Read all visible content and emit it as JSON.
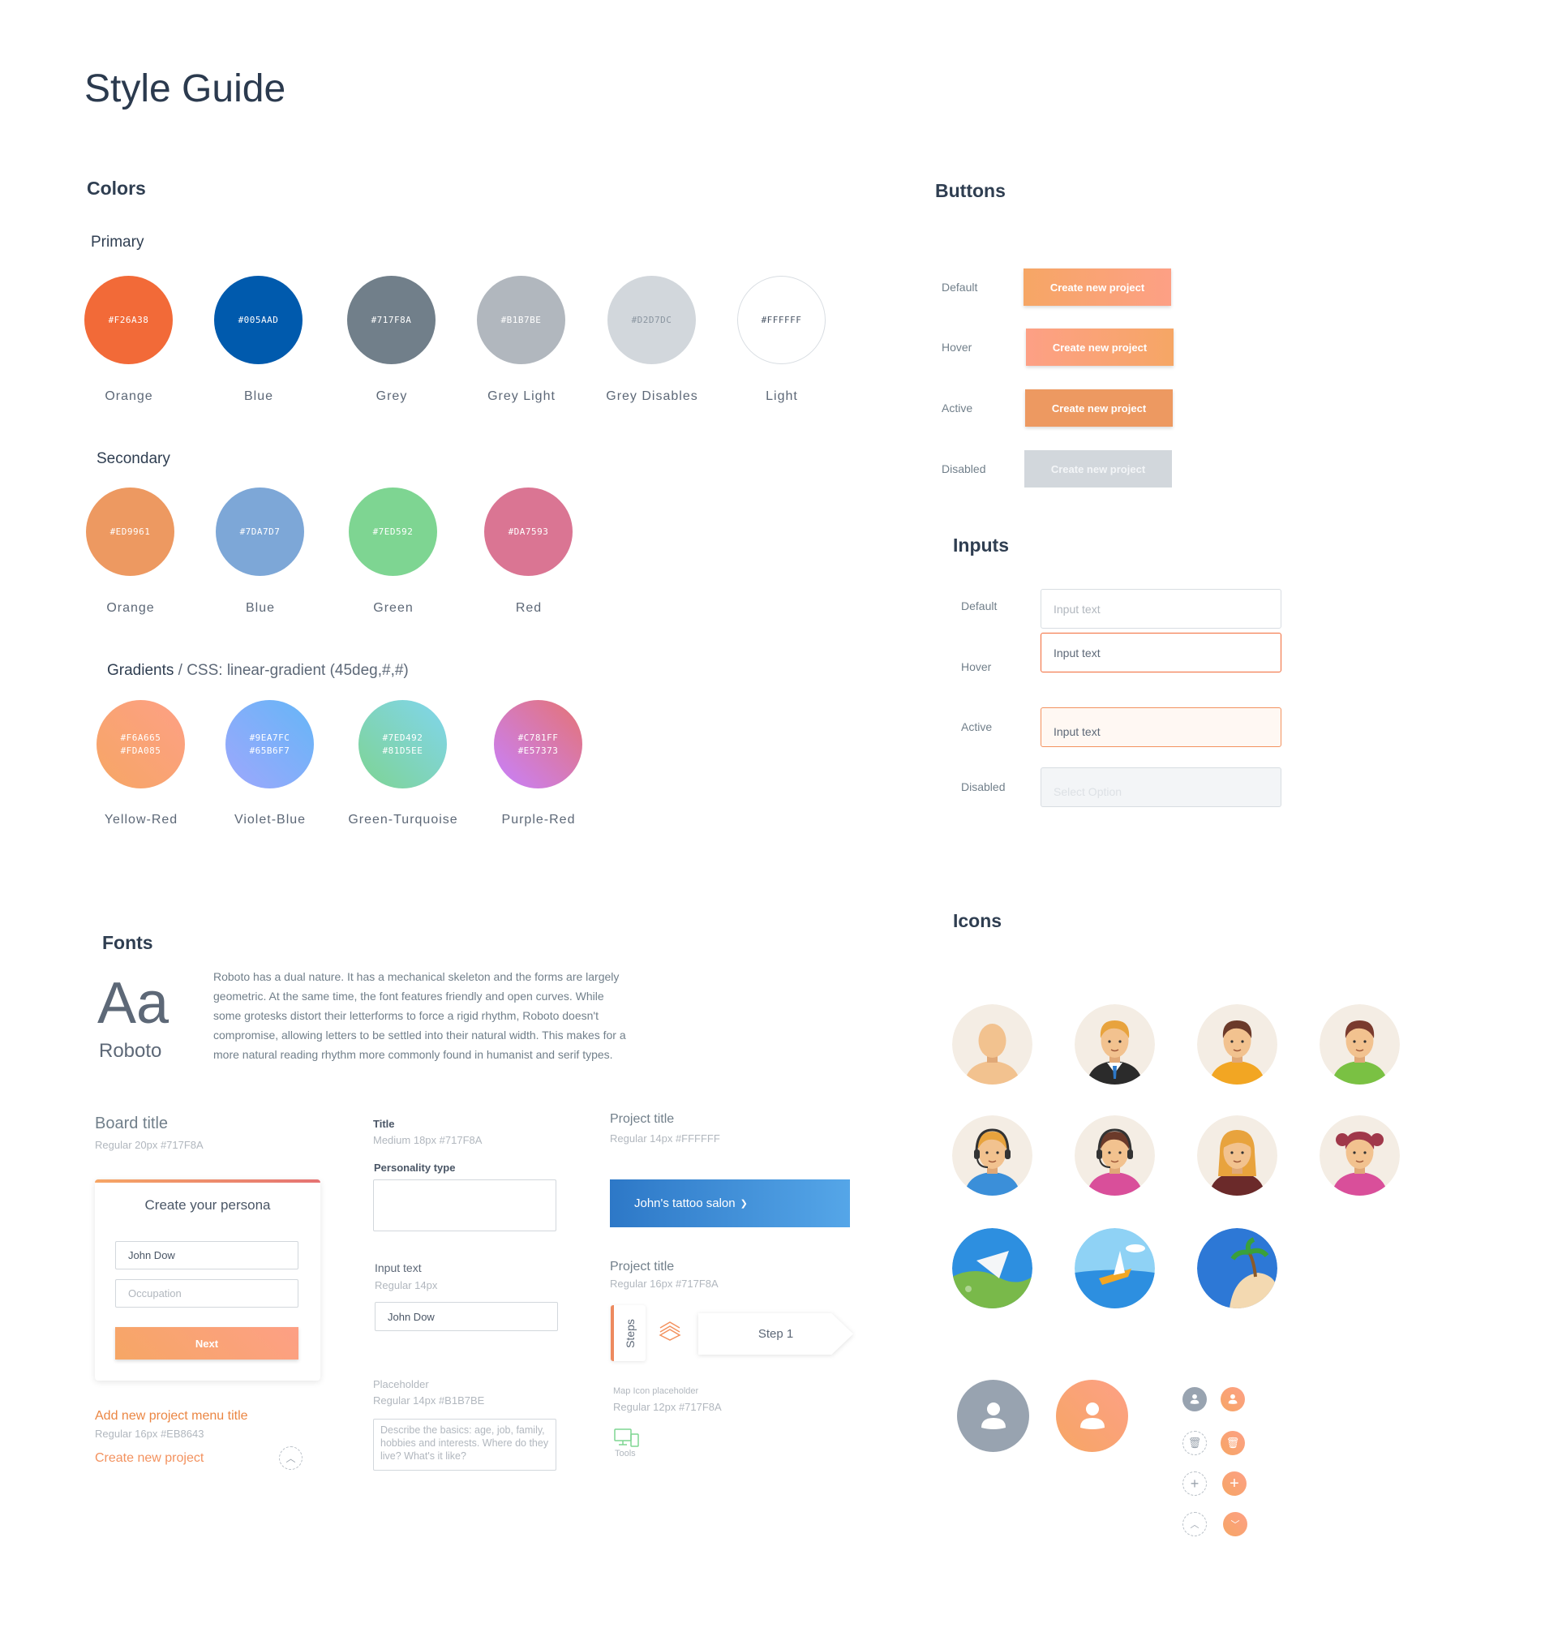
{
  "title": "Style Guide",
  "colors": {
    "heading": "Colors",
    "primary_heading": "Primary",
    "primary": [
      {
        "hex": "#F26A38",
        "name": "Orange"
      },
      {
        "hex": "#005AAD",
        "name": "Blue"
      },
      {
        "hex": "#717F8A",
        "name": "Grey"
      },
      {
        "hex": "#B1B7BE",
        "name": "Grey Light"
      },
      {
        "hex": "#D2D7DC",
        "name": "Grey Disables"
      },
      {
        "hex": "#FFFFFF",
        "name": "Light"
      }
    ],
    "secondary_heading": "Secondary",
    "secondary": [
      {
        "hex": "#ED9961",
        "name": "Orange"
      },
      {
        "hex": "#7DA7D7",
        "name": "Blue"
      },
      {
        "hex": "#7ED592",
        "name": "Green"
      },
      {
        "hex": "#DA7593",
        "name": "Red"
      }
    ],
    "gradients_heading": "Gradients",
    "gradients_sub": " / CSS: linear-gradient (45deg,#,#)",
    "gradients": [
      {
        "from": "#F6A665",
        "to": "#FDA085",
        "name": "Yellow-Red"
      },
      {
        "from": "#9EA7FC",
        "to": "#65B6F7",
        "name": "Violet-Blue"
      },
      {
        "from": "#7ED492",
        "to": "#81D5EE",
        "name": "Green-Turquoise"
      },
      {
        "from": "#C781FF",
        "to": "#E57373",
        "name": "Purple-Red"
      }
    ]
  },
  "buttons": {
    "heading": "Buttons",
    "rows": [
      {
        "state": "Default",
        "label": "Create new project"
      },
      {
        "state": "Hover",
        "label": "Create new project"
      },
      {
        "state": "Active",
        "label": "Create new project"
      },
      {
        "state": "Disabled",
        "label": "Create new project"
      }
    ]
  },
  "inputs": {
    "heading": "Inputs",
    "rows": [
      {
        "state": "Default",
        "placeholder": "Input text"
      },
      {
        "state": "Hover",
        "value": "Input text"
      },
      {
        "state": "Active",
        "value": "Input text"
      },
      {
        "state": "Disabled",
        "placeholder": "Select Option"
      }
    ]
  },
  "fonts": {
    "heading": "Fonts",
    "sample": "Aa",
    "family": "Roboto",
    "description": "Roboto has a dual nature. It has a mechanical skeleton and the forms are largely geometric. At the same time, the font features friendly and open curves. While some grotesks distort their letterforms to force a rigid rhythm, Roboto doesn't compromise, allowing letters to be settled into their natural width. This makes for a more natural reading rhythm more commonly found in humanist and serif types.",
    "board_title": "Board title",
    "board_meta": "Regular 20px #717F8A",
    "card": {
      "title": "Create your persona",
      "name_value": "John Dow",
      "occupation_placeholder": "Occupation",
      "next": "Next"
    },
    "menu_title": "Add new project menu title",
    "menu_meta": "Regular 16px #EB8643",
    "create_link": "Create new project",
    "title_label": "Title",
    "title_meta": "Medium 18px #717F8A",
    "personality_label": "Personality type",
    "input_label": "Input text",
    "input_meta": "Regular 14px",
    "input_value": "John Dow",
    "placeholder_label": "Placeholder",
    "placeholder_meta": "Regular 14px #B1B7BE",
    "placeholder_text": "Describe the basics: age, job, family, hobbies and interests. Where do they live? What's it like?",
    "project_title": "Project title",
    "project_meta": "Regular 14px #FFFFFF",
    "project_name": "John's tattoo salon",
    "project_title2": "Project title",
    "project_meta2": "Regular 16px #717F8A",
    "steps": "Steps",
    "step1": "Step 1",
    "map_label": "Map Icon placeholder",
    "map_meta": "Regular 12px #717F8A",
    "tools": "Tools"
  },
  "icons": {
    "heading": "Icons",
    "avatars": [
      "bald-man",
      "businessman",
      "man-orange-shirt",
      "boy-green-shirt",
      "support-man",
      "support-woman",
      "blonde-woman",
      "girl-pigtails"
    ],
    "scenes": [
      "plane-over-island",
      "boat-on-sea",
      "palm-island"
    ],
    "utility": [
      "user-grey",
      "user-orange",
      "trash-outline",
      "trash-filled",
      "plus-outline",
      "plus-filled",
      "chevron-up-outline",
      "chevron-down-filled"
    ]
  }
}
